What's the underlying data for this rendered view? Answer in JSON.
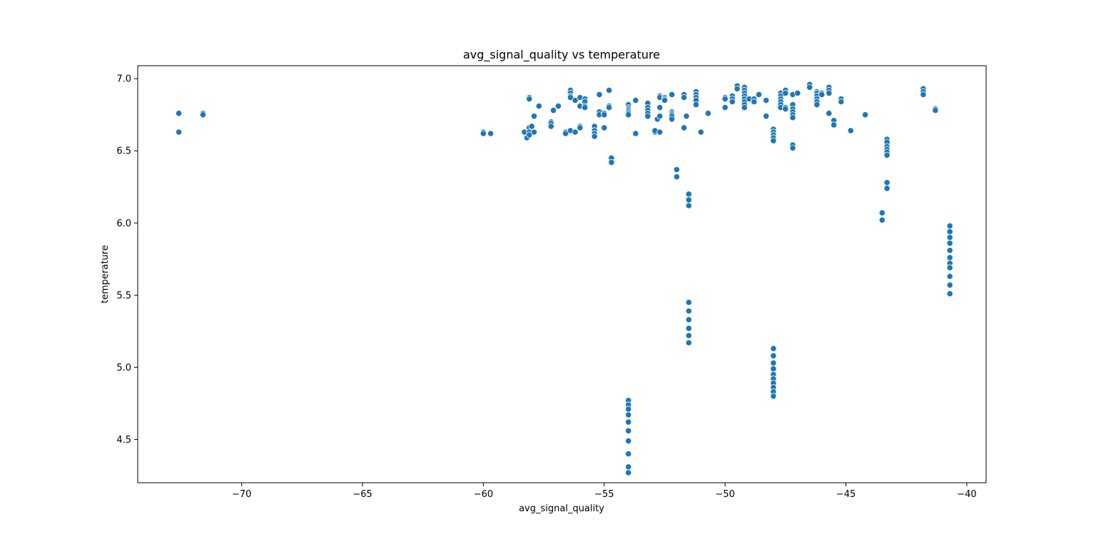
{
  "chart_data": {
    "type": "scatter",
    "title": "avg_signal_quality vs temperature",
    "xlabel": "avg_signal_quality",
    "ylabel": "temperature",
    "xlim": [
      -74.3,
      -39.2
    ],
    "ylim": [
      4.2,
      7.09
    ],
    "xticks": [
      -70,
      -65,
      -60,
      -55,
      -50,
      -45,
      -40
    ],
    "yticks": [
      4.5,
      5.0,
      5.5,
      6.0,
      6.5,
      7.0
    ],
    "xtick_labels": [
      "−70",
      "−65",
      "−60",
      "−55",
      "−50",
      "−45",
      "−40"
    ],
    "ytick_labels": [
      "4.5",
      "5.0",
      "5.5",
      "6.0",
      "6.5",
      "7.0"
    ],
    "grid": false,
    "marker_color": "#1f77b4",
    "series": [
      {
        "points": [
          [
            -72.6,
            6.76
          ],
          [
            -72.6,
            6.63
          ],
          [
            -71.6,
            6.76
          ],
          [
            -71.6,
            6.75
          ],
          [
            -60.0,
            6.63
          ],
          [
            -60.0,
            6.62
          ],
          [
            -59.7,
            6.62
          ],
          [
            -58.3,
            6.63
          ],
          [
            -58.2,
            6.59
          ],
          [
            -58.1,
            6.87
          ],
          [
            -58.1,
            6.86
          ],
          [
            -58.1,
            6.66
          ],
          [
            -58.1,
            6.63
          ],
          [
            -58.1,
            6.61
          ],
          [
            -58.0,
            6.67
          ],
          [
            -57.9,
            6.74
          ],
          [
            -57.9,
            6.63
          ],
          [
            -57.7,
            6.81
          ],
          [
            -57.2,
            6.7
          ],
          [
            -57.2,
            6.69
          ],
          [
            -57.2,
            6.67
          ],
          [
            -57.1,
            6.78
          ],
          [
            -56.9,
            6.81
          ],
          [
            -56.6,
            6.63
          ],
          [
            -56.6,
            6.62
          ],
          [
            -56.4,
            6.92
          ],
          [
            -56.4,
            6.9
          ],
          [
            -56.4,
            6.88
          ],
          [
            -56.4,
            6.87
          ],
          [
            -56.4,
            6.64
          ],
          [
            -56.2,
            6.63
          ],
          [
            -56.2,
            6.85
          ],
          [
            -56.0,
            6.87
          ],
          [
            -56.0,
            6.81
          ],
          [
            -56.0,
            6.67
          ],
          [
            -56.0,
            6.66
          ],
          [
            -55.8,
            6.86
          ],
          [
            -55.8,
            6.84
          ],
          [
            -55.8,
            6.81
          ],
          [
            -55.8,
            6.8
          ],
          [
            -55.4,
            6.67
          ],
          [
            -55.4,
            6.64
          ],
          [
            -55.4,
            6.62
          ],
          [
            -55.4,
            6.6
          ],
          [
            -55.2,
            6.89
          ],
          [
            -55.2,
            6.77
          ],
          [
            -55.2,
            6.75
          ],
          [
            -55.0,
            6.76
          ],
          [
            -55.0,
            6.75
          ],
          [
            -55.0,
            6.66
          ],
          [
            -54.8,
            6.92
          ],
          [
            -54.8,
            6.81
          ],
          [
            -54.8,
            6.8
          ],
          [
            -54.7,
            6.45
          ],
          [
            -54.7,
            6.42
          ],
          [
            -54.0,
            6.82
          ],
          [
            -54.0,
            6.8
          ],
          [
            -54.0,
            6.79
          ],
          [
            -54.0,
            6.78
          ],
          [
            -54.0,
            6.77
          ],
          [
            -54.0,
            6.76
          ],
          [
            -54.0,
            6.75
          ],
          [
            -54.0,
            4.77
          ],
          [
            -54.0,
            4.74
          ],
          [
            -54.0,
            4.71
          ],
          [
            -54.0,
            4.67
          ],
          [
            -54.0,
            4.62
          ],
          [
            -54.0,
            4.56
          ],
          [
            -54.0,
            4.49
          ],
          [
            -54.0,
            4.4
          ],
          [
            -54.0,
            4.31
          ],
          [
            -54.0,
            4.27
          ],
          [
            -53.7,
            6.85
          ],
          [
            -53.7,
            6.62
          ],
          [
            -53.2,
            6.83
          ],
          [
            -53.2,
            6.8
          ],
          [
            -53.2,
            6.78
          ],
          [
            -53.2,
            6.76
          ],
          [
            -53.2,
            6.74
          ],
          [
            -52.9,
            6.63
          ],
          [
            -52.9,
            6.64
          ],
          [
            -52.8,
            6.72
          ],
          [
            -52.7,
            6.88
          ],
          [
            -52.7,
            6.87
          ],
          [
            -52.7,
            6.8
          ],
          [
            -52.7,
            6.74
          ],
          [
            -52.7,
            6.63
          ],
          [
            -52.5,
            6.87
          ],
          [
            -52.5,
            6.86
          ],
          [
            -52.5,
            6.85
          ],
          [
            -52.2,
            6.89
          ],
          [
            -52.2,
            6.77
          ],
          [
            -52.2,
            6.76
          ],
          [
            -52.2,
            6.75
          ],
          [
            -52.2,
            6.74
          ],
          [
            -52.2,
            6.72
          ],
          [
            -52.0,
            6.37
          ],
          [
            -52.0,
            6.32
          ],
          [
            -51.7,
            6.89
          ],
          [
            -51.7,
            6.87
          ],
          [
            -51.7,
            6.66
          ],
          [
            -51.6,
            6.74
          ],
          [
            -51.5,
            6.2
          ],
          [
            -51.5,
            6.16
          ],
          [
            -51.5,
            6.12
          ],
          [
            -51.5,
            5.45
          ],
          [
            -51.5,
            5.39
          ],
          [
            -51.5,
            5.33
          ],
          [
            -51.5,
            5.27
          ],
          [
            -51.5,
            5.22
          ],
          [
            -51.5,
            5.17
          ],
          [
            -51.2,
            6.91
          ],
          [
            -51.2,
            6.89
          ],
          [
            -51.2,
            6.87
          ],
          [
            -51.2,
            6.85
          ],
          [
            -51.2,
            6.82
          ],
          [
            -51.0,
            6.63
          ],
          [
            -50.7,
            6.76
          ],
          [
            -50.0,
            6.87
          ],
          [
            -50.0,
            6.86
          ],
          [
            -50.0,
            6.8
          ],
          [
            -49.7,
            6.88
          ],
          [
            -49.7,
            6.86
          ],
          [
            -49.7,
            6.84
          ],
          [
            -49.5,
            6.95
          ],
          [
            -49.5,
            6.93
          ],
          [
            -49.2,
            6.94
          ],
          [
            -49.2,
            6.92
          ],
          [
            -49.2,
            6.9
          ],
          [
            -49.2,
            6.88
          ],
          [
            -49.2,
            6.86
          ],
          [
            -49.2,
            6.84
          ],
          [
            -49.2,
            6.82
          ],
          [
            -49.2,
            6.8
          ],
          [
            -49.0,
            6.86
          ],
          [
            -48.8,
            6.86
          ],
          [
            -48.8,
            6.84
          ],
          [
            -48.6,
            6.89
          ],
          [
            -48.3,
            6.85
          ],
          [
            -48.3,
            6.74
          ],
          [
            -48.0,
            6.65
          ],
          [
            -48.0,
            6.63
          ],
          [
            -48.0,
            6.61
          ],
          [
            -48.0,
            6.59
          ],
          [
            -48.0,
            6.57
          ],
          [
            -48.0,
            5.13
          ],
          [
            -48.0,
            5.08
          ],
          [
            -48.0,
            5.03
          ],
          [
            -48.0,
            4.99
          ],
          [
            -48.0,
            4.95
          ],
          [
            -48.0,
            4.92
          ],
          [
            -48.0,
            4.89
          ],
          [
            -48.0,
            4.86
          ],
          [
            -48.0,
            4.83
          ],
          [
            -48.0,
            4.8
          ],
          [
            -47.7,
            6.9
          ],
          [
            -47.7,
            6.88
          ],
          [
            -47.7,
            6.86
          ],
          [
            -47.7,
            6.84
          ],
          [
            -47.7,
            6.82
          ],
          [
            -47.7,
            6.8
          ],
          [
            -47.5,
            6.92
          ],
          [
            -47.5,
            6.9
          ],
          [
            -47.5,
            6.8
          ],
          [
            -47.5,
            6.79
          ],
          [
            -47.2,
            6.89
          ],
          [
            -47.2,
            6.82
          ],
          [
            -47.2,
            6.79
          ],
          [
            -47.2,
            6.77
          ],
          [
            -47.2,
            6.75
          ],
          [
            -47.2,
            6.73
          ],
          [
            -47.2,
            6.54
          ],
          [
            -47.2,
            6.52
          ],
          [
            -47.0,
            6.9
          ],
          [
            -46.5,
            6.96
          ],
          [
            -46.5,
            6.94
          ],
          [
            -46.2,
            6.91
          ],
          [
            -46.2,
            6.9
          ],
          [
            -46.2,
            6.88
          ],
          [
            -46.2,
            6.86
          ],
          [
            -46.2,
            6.84
          ],
          [
            -46.2,
            6.82
          ],
          [
            -46.0,
            6.9
          ],
          [
            -46.0,
            6.89
          ],
          [
            -45.7,
            6.94
          ],
          [
            -45.7,
            6.92
          ],
          [
            -45.7,
            6.9
          ],
          [
            -45.7,
            6.76
          ],
          [
            -45.5,
            6.71
          ],
          [
            -45.5,
            6.68
          ],
          [
            -45.2,
            6.86
          ],
          [
            -45.2,
            6.84
          ],
          [
            -44.8,
            6.64
          ],
          [
            -44.2,
            6.75
          ],
          [
            -43.5,
            6.07
          ],
          [
            -43.5,
            6.02
          ],
          [
            -43.3,
            6.58
          ],
          [
            -43.3,
            6.56
          ],
          [
            -43.3,
            6.53
          ],
          [
            -43.3,
            6.51
          ],
          [
            -43.3,
            6.49
          ],
          [
            -43.3,
            6.47
          ],
          [
            -43.3,
            6.28
          ],
          [
            -43.3,
            6.24
          ],
          [
            -41.8,
            6.93
          ],
          [
            -41.8,
            6.91
          ],
          [
            -41.8,
            6.89
          ],
          [
            -41.3,
            6.79
          ],
          [
            -41.3,
            6.78
          ],
          [
            -40.7,
            5.98
          ],
          [
            -40.7,
            5.94
          ],
          [
            -40.7,
            5.9
          ],
          [
            -40.7,
            5.86
          ],
          [
            -40.7,
            5.81
          ],
          [
            -40.7,
            5.76
          ],
          [
            -40.7,
            5.72
          ],
          [
            -40.7,
            5.69
          ],
          [
            -40.7,
            5.63
          ],
          [
            -40.7,
            5.57
          ],
          [
            -40.7,
            5.51
          ]
        ]
      }
    ]
  }
}
